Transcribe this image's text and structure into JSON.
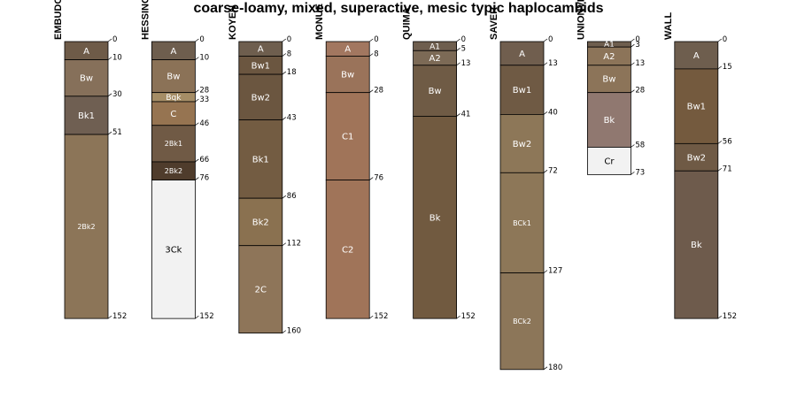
{
  "chart_data": {
    "type": "soil-profile",
    "title": "coarse-loamy, mixed, superactive, mesic typic haplocambids",
    "profiles": [
      {
        "name": "EMBUDO",
        "horizons": [
          {
            "name": "A",
            "top": 0,
            "bottom": 10,
            "color": "#6e5b48"
          },
          {
            "name": "Bw",
            "top": 10,
            "bottom": 30,
            "color": "#86705a"
          },
          {
            "name": "Bk1",
            "top": 30,
            "bottom": 51,
            "color": "#6f5f52"
          },
          {
            "name": "2Bk2",
            "top": 51,
            "bottom": 152,
            "color": "#8c7558"
          }
        ]
      },
      {
        "name": "HESSING",
        "horizons": [
          {
            "name": "A",
            "top": 0,
            "bottom": 10,
            "color": "#6e5e4e"
          },
          {
            "name": "Bw",
            "top": 10,
            "bottom": 28,
            "color": "#8b7257"
          },
          {
            "name": "Bqk",
            "top": 28,
            "bottom": 33,
            "color": "#a58d66"
          },
          {
            "name": "C",
            "top": 33,
            "bottom": 46,
            "color": "#967451"
          },
          {
            "name": "2Bk1",
            "top": 46,
            "bottom": 66,
            "color": "#705a45"
          },
          {
            "name": "2Bk2",
            "top": 66,
            "bottom": 76,
            "color": "#4f3c2c"
          },
          {
            "name": "3Ck",
            "top": 76,
            "bottom": 152,
            "color": "#f2f2f2"
          }
        ]
      },
      {
        "name": "KOYEN",
        "horizons": [
          {
            "name": "A",
            "top": 0,
            "bottom": 8,
            "color": "#6e5e4e"
          },
          {
            "name": "Bw1",
            "top": 8,
            "bottom": 18,
            "color": "#6b5640"
          },
          {
            "name": "Bw2",
            "top": 18,
            "bottom": 43,
            "color": "#6b5640"
          },
          {
            "name": "Bk1",
            "top": 43,
            "bottom": 86,
            "color": "#735c42"
          },
          {
            "name": "Bk2",
            "top": 86,
            "bottom": 112,
            "color": "#8a7150"
          },
          {
            "name": "2C",
            "top": 112,
            "bottom": 160,
            "color": "#8e7559"
          }
        ]
      },
      {
        "name": "MONUE",
        "horizons": [
          {
            "name": "A",
            "top": 0,
            "bottom": 8,
            "color": "#a27760"
          },
          {
            "name": "Bw",
            "top": 8,
            "bottom": 28,
            "color": "#9a735a"
          },
          {
            "name": "C1",
            "top": 28,
            "bottom": 76,
            "color": "#a07459"
          },
          {
            "name": "C2",
            "top": 76,
            "bottom": 152,
            "color": "#a07459"
          }
        ]
      },
      {
        "name": "QUIMA",
        "horizons": [
          {
            "name": "A1",
            "top": 0,
            "bottom": 5,
            "color": "#6e5e4e"
          },
          {
            "name": "A2",
            "top": 5,
            "bottom": 13,
            "color": "#7c6a56"
          },
          {
            "name": "Bw",
            "top": 13,
            "bottom": 41,
            "color": "#6f5b45"
          },
          {
            "name": "Bk",
            "top": 41,
            "bottom": 152,
            "color": "#715a40"
          }
        ]
      },
      {
        "name": "SAVER",
        "horizons": [
          {
            "name": "A",
            "top": 0,
            "bottom": 13,
            "color": "#705e4e"
          },
          {
            "name": "Bw1",
            "top": 13,
            "bottom": 40,
            "color": "#6f5a44"
          },
          {
            "name": "Bw2",
            "top": 40,
            "bottom": 72,
            "color": "#8d7758"
          },
          {
            "name": "BCk1",
            "top": 72,
            "bottom": 127,
            "color": "#8d7758"
          },
          {
            "name": "BCk2",
            "top": 127,
            "bottom": 180,
            "color": "#8c7659"
          }
        ]
      },
      {
        "name": "UNIONVILLE",
        "horizons": [
          {
            "name": "A1",
            "top": 0,
            "bottom": 3,
            "color": "#6e5e4e"
          },
          {
            "name": "A2",
            "top": 3,
            "bottom": 13,
            "color": "#8c7459"
          },
          {
            "name": "Bw",
            "top": 13,
            "bottom": 28,
            "color": "#8c7459"
          },
          {
            "name": "Bk",
            "top": 28,
            "bottom": 58,
            "color": "#907870"
          },
          {
            "name": "Cr",
            "top": 58,
            "bottom": 73,
            "color": "#f2f2f2"
          }
        ]
      },
      {
        "name": "WALL",
        "horizons": [
          {
            "name": "A",
            "top": 0,
            "bottom": 15,
            "color": "#6e5e4e"
          },
          {
            "name": "Bw1",
            "top": 15,
            "bottom": 56,
            "color": "#745a3e"
          },
          {
            "name": "Bw2",
            "top": 56,
            "bottom": 71,
            "color": "#6f5a45"
          },
          {
            "name": "Bk",
            "top": 71,
            "bottom": 152,
            "color": "#6e5b4c"
          }
        ]
      }
    ]
  }
}
